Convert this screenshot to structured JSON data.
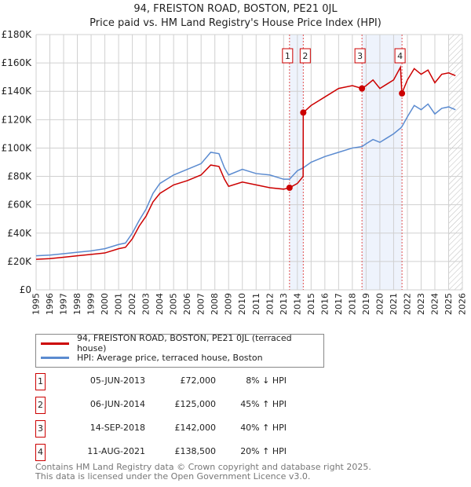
{
  "chart_data": {
    "type": "line",
    "title": "94, FREISTON ROAD, BOSTON, PE21 0JL",
    "subtitle": "Price paid vs. HM Land Registry's House Price Index (HPI)",
    "xlim": [
      1995,
      2026
    ],
    "ylim": [
      0,
      180000
    ],
    "x_ticks": [
      "1995",
      "1996",
      "1997",
      "1998",
      "1999",
      "2000",
      "2001",
      "2002",
      "2003",
      "2004",
      "2005",
      "2006",
      "2007",
      "2008",
      "2009",
      "2010",
      "2011",
      "2012",
      "2013",
      "2014",
      "2015",
      "2016",
      "2017",
      "2018",
      "2019",
      "2020",
      "2021",
      "2022",
      "2023",
      "2024",
      "2025",
      "2026"
    ],
    "y_ticks": [
      {
        "v": 0,
        "label": "£0"
      },
      {
        "v": 20000,
        "label": "£20K"
      },
      {
        "v": 40000,
        "label": "£40K"
      },
      {
        "v": 60000,
        "label": "£60K"
      },
      {
        "v": 80000,
        "label": "£80K"
      },
      {
        "v": 100000,
        "label": "£100K"
      },
      {
        "v": 120000,
        "label": "£120K"
      },
      {
        "v": 140000,
        "label": "£140K"
      },
      {
        "v": 160000,
        "label": "£160K"
      },
      {
        "v": 180000,
        "label": "£180K"
      }
    ],
    "grid": true,
    "series": [
      {
        "name": "94, FREISTON ROAD, BOSTON, PE21 0JL (terraced house)",
        "color": "#cc0000",
        "x": [
          1995,
          1996,
          1997,
          1998,
          1999,
          2000,
          2001,
          2001.5,
          2002,
          2002.5,
          2003,
          2003.5,
          2004,
          2005,
          2006,
          2007,
          2007.7,
          2008.3,
          2008.7,
          2009,
          2010,
          2011,
          2012,
          2013,
          2013.43,
          2014,
          2014.42,
          2014.43,
          2015,
          2016,
          2017,
          2018,
          2018.7,
          2019,
          2019.5,
          2020,
          2020.5,
          2021,
          2021.5,
          2021.6,
          2022,
          2022.5,
          2023,
          2023.5,
          2024,
          2024.5,
          2025,
          2025.5
        ],
        "y": [
          21500,
          22000,
          23000,
          24000,
          25000,
          26000,
          29000,
          30000,
          36000,
          45000,
          52000,
          62000,
          68000,
          74000,
          77000,
          81000,
          88000,
          87000,
          78000,
          73000,
          76000,
          74000,
          72000,
          71000,
          72000,
          75000,
          80000,
          125000,
          130000,
          136000,
          142000,
          144000,
          142000,
          144000,
          148000,
          142000,
          145000,
          148000,
          157000,
          138500,
          148000,
          156000,
          152000,
          155000,
          146000,
          152000,
          153000,
          151000
        ]
      },
      {
        "name": "HPI: Average price, terraced house, Boston",
        "color": "#5b8bd0",
        "x": [
          1995,
          1996,
          1997,
          1998,
          1999,
          2000,
          2001,
          2001.5,
          2002,
          2002.5,
          2003,
          2003.5,
          2004,
          2005,
          2006,
          2007,
          2007.7,
          2008.3,
          2008.7,
          2009,
          2010,
          2011,
          2012,
          2013,
          2013.43,
          2014,
          2014.42,
          2015,
          2016,
          2017,
          2018,
          2018.7,
          2019,
          2019.5,
          2020,
          2020.5,
          2021,
          2021.5,
          2021.6,
          2022,
          2022.5,
          2023,
          2023.5,
          2024,
          2024.5,
          2025,
          2025.5
        ],
        "y": [
          24000,
          24500,
          25500,
          26500,
          27500,
          29000,
          32000,
          33000,
          40000,
          49000,
          57000,
          68000,
          75000,
          81000,
          85000,
          89000,
          97000,
          96000,
          86000,
          81000,
          85000,
          82000,
          81000,
          78000,
          78000,
          84000,
          86000,
          90000,
          94000,
          97000,
          100000,
          101000,
          103000,
          106000,
          104000,
          107000,
          110000,
          114000,
          115000,
          122000,
          130000,
          127000,
          131000,
          124000,
          128000,
          129000,
          127000
        ]
      }
    ],
    "sales": [
      {
        "num": "1",
        "x": 2013.43,
        "y": 72000,
        "date": "05-JUN-2013",
        "price": "£72,000",
        "hpi": "8% ↓ HPI"
      },
      {
        "num": "2",
        "x": 2014.43,
        "y": 125000,
        "date": "06-JUN-2014",
        "price": "£125,000",
        "hpi": "45% ↑ HPI"
      },
      {
        "num": "3",
        "x": 2018.7,
        "y": 142000,
        "date": "14-SEP-2018",
        "price": "£142,000",
        "hpi": "40% ↑ HPI"
      },
      {
        "num": "4",
        "x": 2021.61,
        "y": 138500,
        "date": "11-AUG-2021",
        "price": "£138,500",
        "hpi": "20% ↑ HPI"
      }
    ],
    "legend_placement": "below"
  },
  "footer": {
    "line1": "Contains HM Land Registry data © Crown copyright and database right 2025.",
    "line2": "This data is licensed under the Open Government Licence v3.0."
  }
}
